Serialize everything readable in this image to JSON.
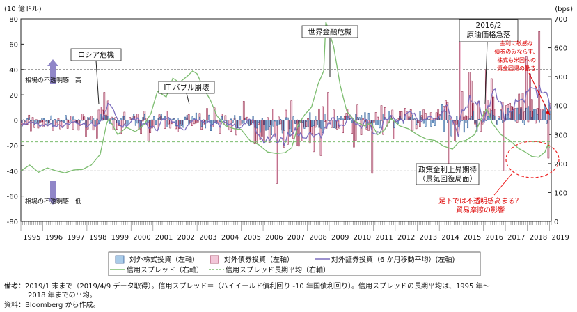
{
  "chart_data": {
    "type": "bar",
    "title": "",
    "left_axis": {
      "unit_label": "(10 億ドル)",
      "min": -80,
      "max": 80,
      "ticks": [
        80,
        60,
        40,
        20,
        0,
        -20,
        -40,
        -60,
        -80
      ]
    },
    "right_axis": {
      "unit_label": "(bps)",
      "min": 0,
      "max": 700,
      "ticks": [
        700,
        600,
        500,
        400,
        300,
        200,
        100,
        0
      ]
    },
    "x_axis": {
      "start_year": 1995,
      "years": [
        "1995",
        "1996",
        "1997",
        "1998",
        "1999",
        "2000",
        "2001",
        "2002",
        "2003",
        "2004",
        "2005",
        "2006",
        "2007",
        "2008",
        "2009",
        "2010",
        "2011",
        "2012",
        "2013",
        "2014",
        "2015",
        "2016",
        "2017",
        "2018",
        "2019"
      ]
    },
    "grid": "dashed horizontal at 40, -40 and -60",
    "series": [
      {
        "name": "対外株式投資（左軸）",
        "kind": "bar",
        "color": "#a9cbe8",
        "stroke": "#1f4e8c",
        "axis": "left"
      },
      {
        "name": "対外債券投資（左軸）",
        "kind": "bar",
        "color": "#f2c7d8",
        "stroke": "#8a1c3c",
        "axis": "left"
      },
      {
        "name": "対外証券投資（6 か月移動平均）(左軸)",
        "kind": "line",
        "color": "#7b6dbe",
        "axis": "left"
      },
      {
        "name": "信用スプレッド（右軸）",
        "kind": "line",
        "color": "#7cbd6f",
        "axis": "right"
      },
      {
        "name": "信用スプレッド長期平均（右軸）",
        "kind": "dashed-line",
        "color": "#7cbd6f",
        "axis": "right",
        "value": 275
      }
    ],
    "credit_spread_points": [
      [
        1995.0,
        175
      ],
      [
        1995.4,
        195
      ],
      [
        1995.8,
        170
      ],
      [
        1996.2,
        185
      ],
      [
        1996.6,
        175
      ],
      [
        1997.0,
        168
      ],
      [
        1997.4,
        178
      ],
      [
        1997.8,
        180
      ],
      [
        1998.2,
        195
      ],
      [
        1998.6,
        232
      ],
      [
        1998.9,
        340
      ],
      [
        1999.0,
        355
      ],
      [
        1999.4,
        300
      ],
      [
        1999.8,
        325
      ],
      [
        2000.2,
        310
      ],
      [
        2000.6,
        335
      ],
      [
        2000.9,
        372
      ],
      [
        2001.2,
        450
      ],
      [
        2001.6,
        430
      ],
      [
        2001.9,
        495
      ],
      [
        2002.2,
        480
      ],
      [
        2002.6,
        505
      ],
      [
        2002.8,
        520
      ],
      [
        2003.0,
        510
      ],
      [
        2003.3,
        460
      ],
      [
        2003.6,
        420
      ],
      [
        2003.9,
        365
      ],
      [
        2004.3,
        330
      ],
      [
        2004.7,
        320
      ],
      [
        2005.0,
        318
      ],
      [
        2005.4,
        280
      ],
      [
        2005.8,
        265
      ],
      [
        2006.2,
        240
      ],
      [
        2006.6,
        235
      ],
      [
        2007.0,
        238
      ],
      [
        2007.3,
        255
      ],
      [
        2007.6,
        335
      ],
      [
        2007.9,
        370
      ],
      [
        2008.2,
        395
      ],
      [
        2008.5,
        475
      ],
      [
        2008.75,
        520
      ],
      [
        2008.85,
        690
      ],
      [
        2008.95,
        665
      ],
      [
        2009.2,
        605
      ],
      [
        2009.5,
        470
      ],
      [
        2009.8,
        380
      ],
      [
        2010.2,
        345
      ],
      [
        2010.6,
        330
      ],
      [
        2010.9,
        340
      ],
      [
        2011.2,
        300
      ],
      [
        2011.5,
        315
      ],
      [
        2011.8,
        355
      ],
      [
        2012.2,
        330
      ],
      [
        2012.6,
        320
      ],
      [
        2013.0,
        300
      ],
      [
        2013.4,
        285
      ],
      [
        2013.8,
        280
      ],
      [
        2014.2,
        260
      ],
      [
        2014.6,
        250
      ],
      [
        2014.9,
        275
      ],
      [
        2015.2,
        280
      ],
      [
        2015.6,
        300
      ],
      [
        2015.9,
        355
      ],
      [
        2016.15,
        390
      ],
      [
        2016.4,
        340
      ],
      [
        2016.8,
        300
      ],
      [
        2017.2,
        280
      ],
      [
        2017.6,
        252
      ],
      [
        2017.9,
        240
      ],
      [
        2018.2,
        225
      ],
      [
        2018.5,
        222
      ],
      [
        2018.8,
        240
      ],
      [
        2018.95,
        270
      ],
      [
        2019.0,
        255
      ]
    ],
    "annotations": [
      {
        "text": "ロシア危機"
      },
      {
        "text": "IT バブル崩壊"
      },
      {
        "text": "世界金融危機"
      },
      {
        "text": "2016/2"
      },
      {
        "text": "原油価格急落"
      },
      {
        "text": "政策金利上昇期待"
      },
      {
        "text": "（景気回復局面）"
      },
      {
        "text": "金利に敏感な"
      },
      {
        "text": "債券のみならず、"
      },
      {
        "text": "株式も米国への"
      },
      {
        "text": "資金回帰の動き"
      },
      {
        "text": "足下では不透明感高まる？"
      },
      {
        "text": "貿易摩擦の影響"
      },
      {
        "text": "相場の不透明感　高"
      },
      {
        "text": "相場の不透明感　低"
      }
    ]
  },
  "notes": {
    "line1": "備考：2019/1 末まで（2019/4/9 データ取得）。信用スプレッド＝（ハイイールド債利回り -10 年国債利回り）。信用スプレッドの長期平均は、1995 年～",
    "line2": "2018 年までの平均。",
    "line3": "資料：Bloomberg から作成。"
  }
}
